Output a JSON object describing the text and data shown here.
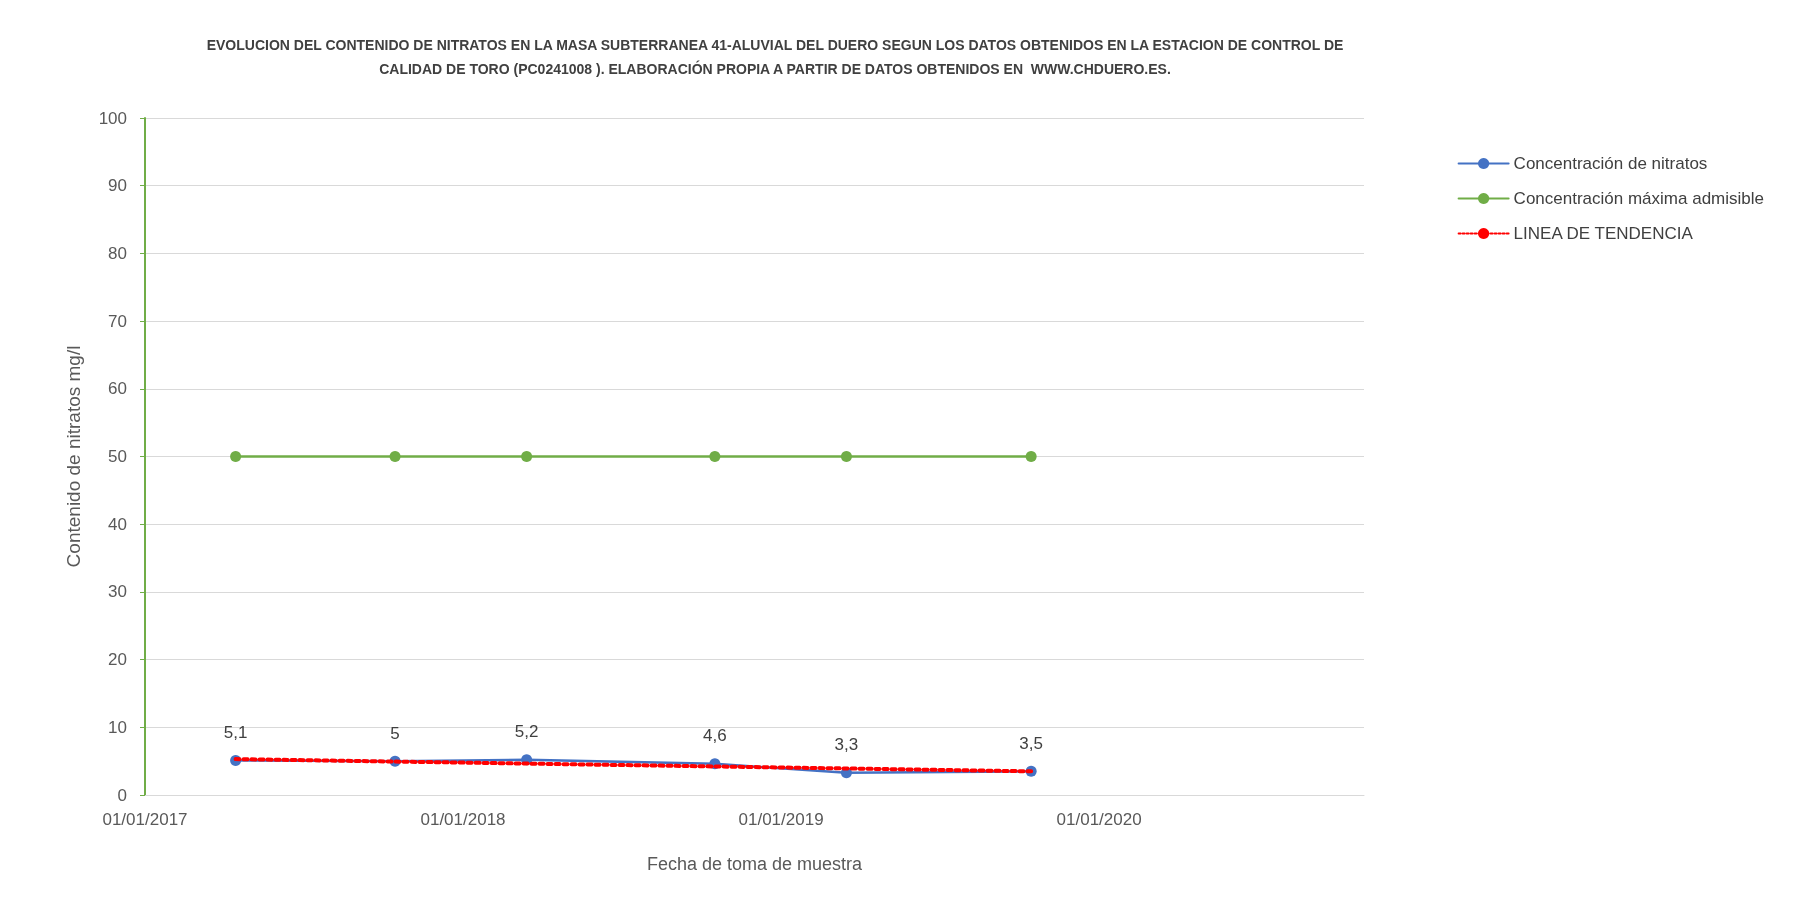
{
  "chart_data": {
    "type": "line",
    "title": "EVOLUCION DEL CONTENIDO DE NITRATOS EN LA MASA SUBTERRANEA 41-ALUVIAL DEL DUERO SEGUN LOS DATOS OBTENIDOS EN LA ESTACION DE CONTROL DE\nCALIDAD DE TORO (PC0241008 ). ELABORACIÓN PROPIA A PARTIR DE DATOS OBTENIDOS EN  WWW.CHDUERO.ES.",
    "xlabel": "Fecha de toma de muestra",
    "ylabel": "Contenido de nitratos mg/l",
    "x": [
      "2017-04-15",
      "2017-10-15",
      "2018-03-15",
      "2018-10-17",
      "2019-03-17",
      "2019-10-15"
    ],
    "series": [
      {
        "name": "Concentración de nitratos",
        "color": "#4472c4",
        "values": [
          5.1,
          5,
          5.2,
          4.6,
          3.3,
          3.5
        ],
        "value_labels": [
          "5,1",
          "5",
          "5,2",
          "4,6",
          "3,3",
          "3,5"
        ],
        "marker": "circle"
      },
      {
        "name": "Concentración máxima admisible",
        "color": "#70ad47",
        "values": [
          50,
          50,
          50,
          50,
          50,
          50
        ],
        "marker": "circle"
      },
      {
        "name": "LINEA DE TENDENCIA",
        "color": "#ff0000",
        "x": [
          "2017-04-15",
          "2019-10-15"
        ],
        "values": [
          5.3,
          3.5
        ],
        "line_style": "dotted",
        "marker": "none"
      }
    ],
    "xlim": [
      "2017-01-01",
      "2020-10-31"
    ],
    "xticks": [
      {
        "value": "2017-01-01",
        "label": "01/01/2017"
      },
      {
        "value": "2018-01-01",
        "label": "01/01/2018"
      },
      {
        "value": "2019-01-01",
        "label": "01/01/2019"
      },
      {
        "value": "2020-01-01",
        "label": "01/01/2020"
      }
    ],
    "ylim": [
      0,
      100
    ],
    "yticks": [
      0,
      10,
      20,
      30,
      40,
      50,
      60,
      70,
      80,
      90,
      100
    ],
    "grid": "y",
    "legend": "top right"
  }
}
